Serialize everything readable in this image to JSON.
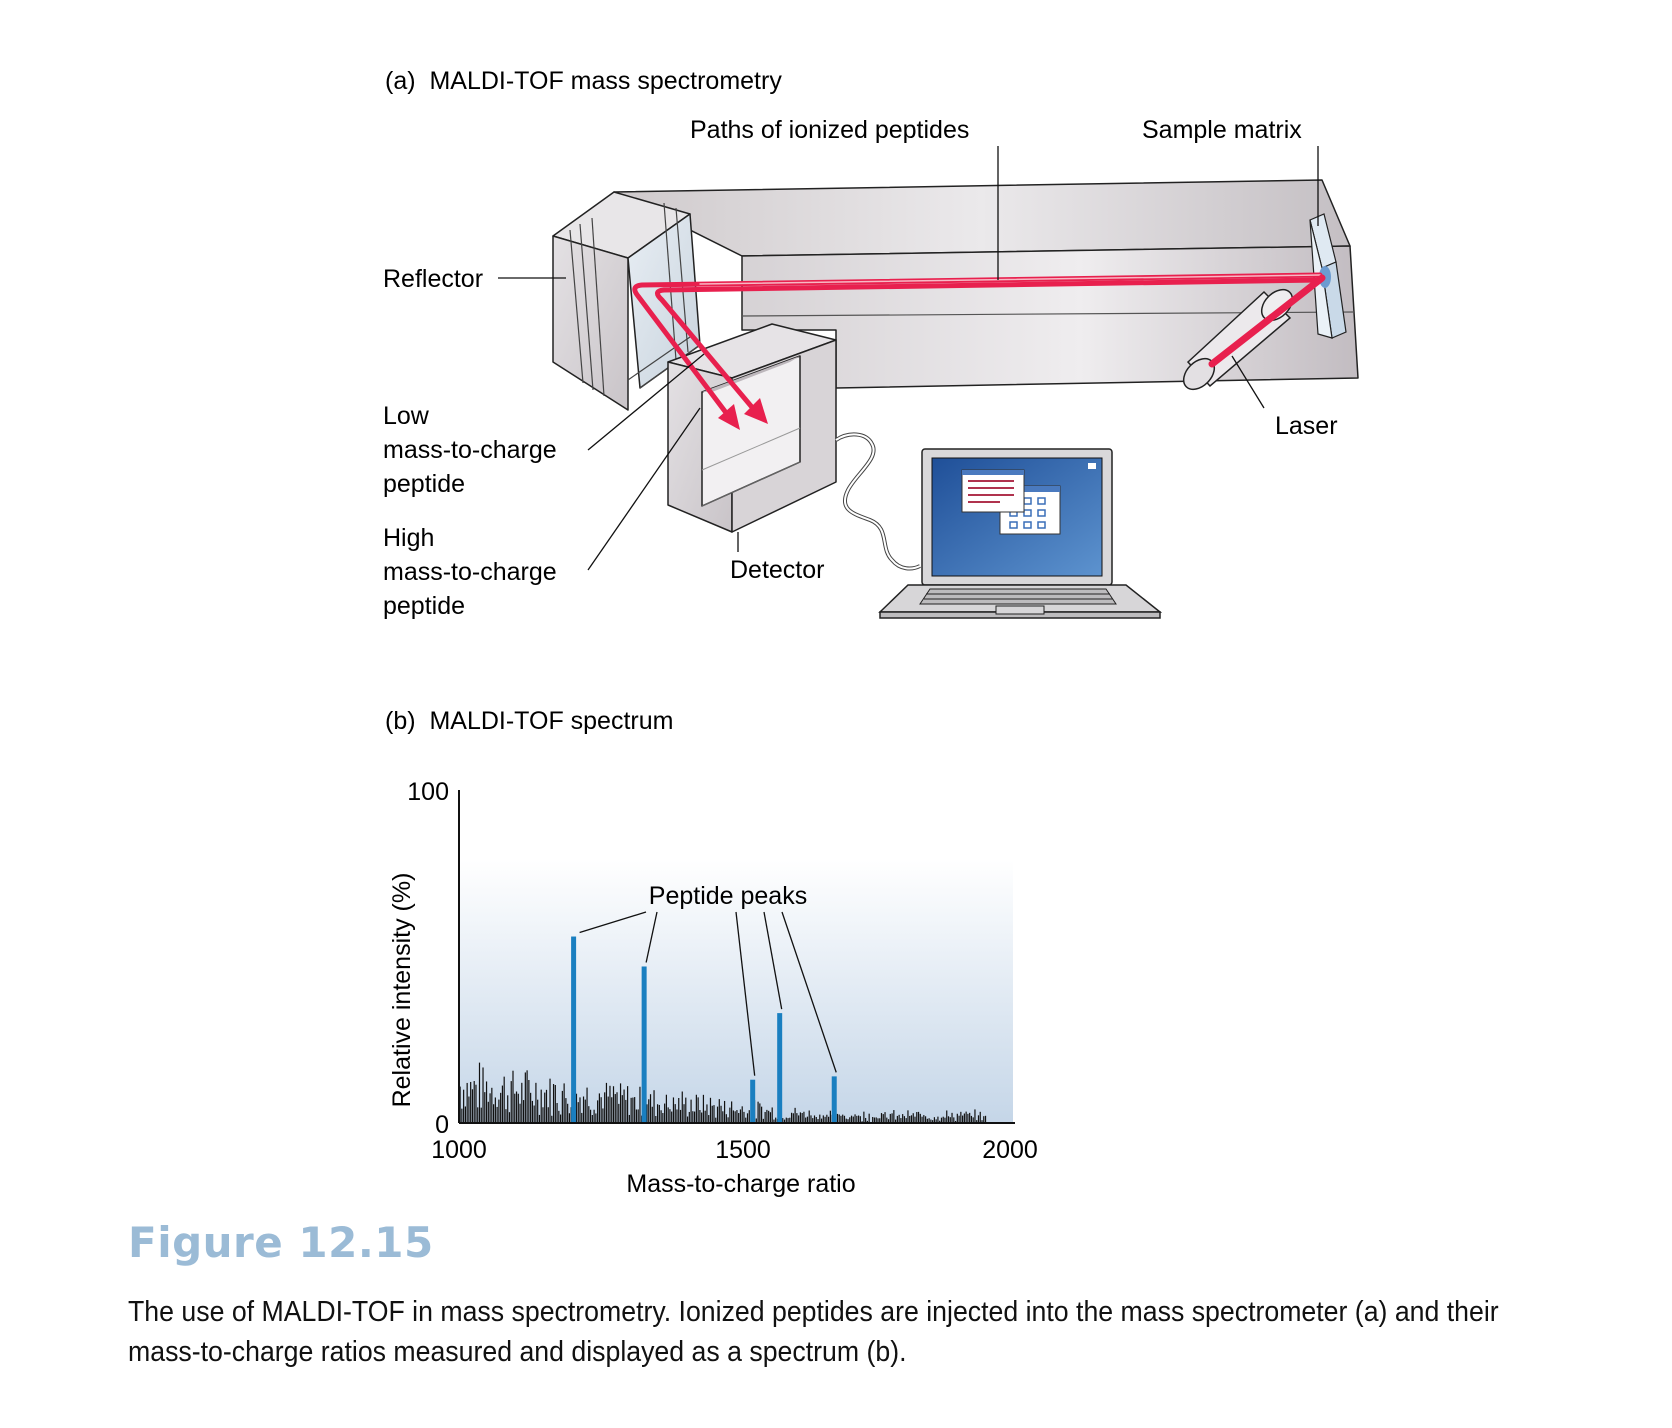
{
  "panel_a": {
    "title": "(a)  MALDI-TOF mass spectrometry",
    "labels": {
      "paths": "Paths of ionized peptides",
      "sample_matrix": "Sample matrix",
      "reflector": "Reflector",
      "low_1": "Low",
      "low_2": "mass-to-charge",
      "low_3": "peptide",
      "high_1": "High",
      "high_2": "mass-to-charge",
      "high_3": "peptide",
      "detector": "Detector",
      "laser": "Laser"
    }
  },
  "panel_b": {
    "title": "(b)  MALDI-TOF spectrum",
    "annotation": "Peptide peaks"
  },
  "chart_data": {
    "type": "bar",
    "xlabel": "Mass-to-charge ratio",
    "ylabel": "Relative intensity (%)",
    "xlim": [
      1000,
      2000
    ],
    "ylim": [
      0,
      100
    ],
    "xticks": [
      "1000",
      "1500",
      "2000"
    ],
    "yticks": [
      "0",
      "100"
    ],
    "series": [
      {
        "x": [
          1208,
          1336,
          1533,
          1582,
          1681
        ],
        "values": [
          56,
          47,
          13,
          33,
          14
        ]
      }
    ],
    "peak_color": "#1a7fc0",
    "noise_color": "#111111"
  },
  "caption": {
    "figure": "Figure 12.15",
    "line1": "The use of MALDI-TOF in mass spectrometry. Ionized peptides are injected into the mass spectrometer (a) and their",
    "line2": "mass-to-charge ratios measured and displayed as a spectrum (b)."
  }
}
